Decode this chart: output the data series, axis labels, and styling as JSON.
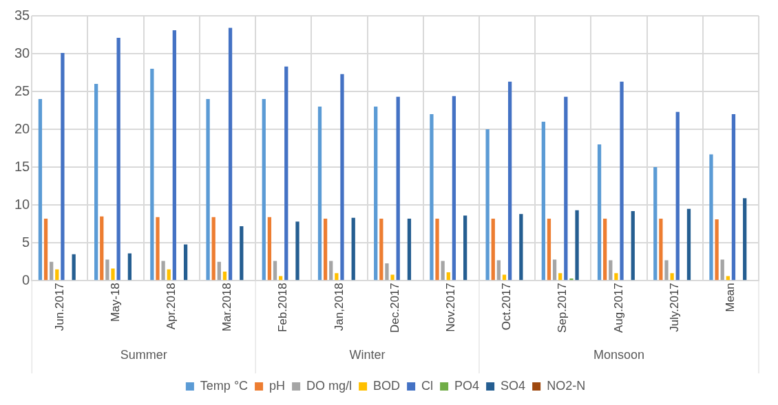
{
  "chart_data": {
    "type": "bar",
    "categories": [
      "Jun.2017",
      "May-18",
      "Apr.2018",
      "Mar.2018",
      "Feb.2018",
      "Jan,2018",
      "Dec.2017",
      "Nov.2017",
      "Oct.2017",
      "Sep.2017",
      "Aug.2017",
      "July.2017",
      "Mean"
    ],
    "series": [
      {
        "name": "Temp °C",
        "color": "#5b9bd5",
        "values": [
          24,
          26,
          28,
          24,
          24,
          23,
          23,
          22,
          20,
          21,
          18,
          15,
          16.7
        ]
      },
      {
        "name": "pH",
        "color": "#ed7d31",
        "values": [
          8.2,
          8.5,
          8.4,
          8.4,
          8.4,
          8.2,
          8.2,
          8.2,
          8.2,
          8.2,
          8.2,
          8.2,
          8.1
        ]
      },
      {
        "name": "DO mg/l",
        "color": "#a5a5a5",
        "values": [
          2.5,
          2.8,
          2.6,
          2.5,
          2.6,
          2.6,
          2.3,
          2.6,
          2.7,
          2.8,
          2.7,
          2.7,
          2.8
        ]
      },
      {
        "name": "BOD",
        "color": "#ffc000",
        "values": [
          1.5,
          1.6,
          1.5,
          1.2,
          0.6,
          1.0,
          0.8,
          1.1,
          0.8,
          1.0,
          1.0,
          1.0,
          0.6
        ]
      },
      {
        "name": "Cl",
        "color": "#4472c4",
        "values": [
          30.1,
          32.1,
          33.1,
          33.4,
          28.3,
          27.3,
          24.3,
          24.4,
          26.3,
          24.3,
          26.3,
          22.3,
          22
        ]
      },
      {
        "name": "PO4",
        "color": "#70ad47",
        "values": [
          0,
          0,
          0,
          0,
          0,
          0,
          0,
          0,
          0,
          0.3,
          0,
          0,
          0
        ]
      },
      {
        "name": "SO4",
        "color": "#255e91",
        "values": [
          3.5,
          3.6,
          4.8,
          7.2,
          7.8,
          8.3,
          8.2,
          8.6,
          8.8,
          9.3,
          9.2,
          9.5,
          10.9
        ]
      },
      {
        "name": "NO2-N",
        "color": "#9e480e",
        "values": [
          0,
          0,
          0,
          0,
          0,
          0,
          0,
          0,
          0,
          0,
          0,
          0,
          0
        ]
      }
    ],
    "annotations": [
      "Summer",
      "Winter",
      "Monsoon"
    ],
    "ylim": [
      0,
      35
    ],
    "yticks": [
      0,
      5,
      10,
      15,
      20,
      25,
      30,
      35
    ],
    "grid": true,
    "legend": "bottom"
  }
}
